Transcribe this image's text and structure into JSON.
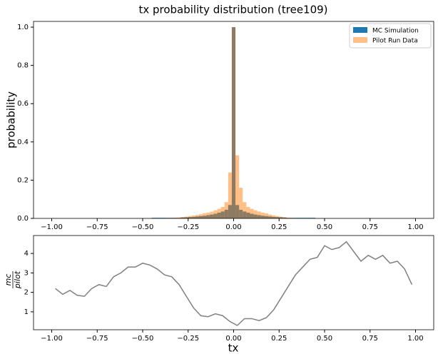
{
  "chart_data": [
    {
      "type": "histogram",
      "title": "tx probability distribution (tree109)",
      "ylabel": "probability",
      "bins": [
        -0.45,
        -0.43,
        -0.41,
        -0.39,
        -0.37,
        -0.35,
        -0.33,
        -0.31,
        -0.29,
        -0.27,
        -0.25,
        -0.23,
        -0.21,
        -0.19,
        -0.17,
        -0.15,
        -0.13,
        -0.11,
        -0.09,
        -0.07,
        -0.05,
        -0.03,
        -0.01,
        0.01,
        0.03,
        0.05,
        0.07,
        0.09,
        0.11,
        0.13,
        0.15,
        0.17,
        0.19,
        0.21,
        0.23,
        0.25,
        0.27,
        0.29,
        0.31,
        0.33,
        0.35,
        0.37,
        0.39,
        0.41,
        0.43,
        0.45
      ],
      "series": [
        {
          "name": "MC Simulation",
          "color": "#1f77b4",
          "alpha": 1,
          "values": [
            0.003,
            0.003,
            0.003,
            0.003,
            0.003,
            0.003,
            0.003,
            0.003,
            0.005,
            0.006,
            0.007,
            0.008,
            0.01,
            0.012,
            0.014,
            0.017,
            0.02,
            0.024,
            0.03,
            0.036,
            0.045,
            0.07,
            1.0,
            0.07,
            0.045,
            0.036,
            0.03,
            0.024,
            0.02,
            0.017,
            0.014,
            0.012,
            0.01,
            0.008,
            0.007,
            0.006,
            0.005,
            0.003,
            0.003,
            0.003,
            0.003,
            0.003,
            0.003,
            0.003,
            0.003
          ]
        },
        {
          "name": "Pilot Run Data",
          "color": "#ff7f0e",
          "alpha": 0.5,
          "values": [
            0,
            0,
            0,
            0,
            0.002,
            0.003,
            0.004,
            0.005,
            0.007,
            0.009,
            0.012,
            0.015,
            0.018,
            0.022,
            0.027,
            0.03,
            0.035,
            0.042,
            0.05,
            0.06,
            0.085,
            0.24,
            1.0,
            0.33,
            0.16,
            0.085,
            0.06,
            0.05,
            0.042,
            0.036,
            0.03,
            0.026,
            0.02,
            0.016,
            0.012,
            0.009,
            0.006,
            0.004,
            0.003,
            0.002,
            0,
            0,
            0,
            0,
            0
          ]
        }
      ],
      "xlim": [
        -1.1,
        1.1
      ],
      "xticks": [
        {
          "value": -1,
          "label": "−1.00"
        },
        {
          "value": -0.75,
          "label": "−0.75"
        },
        {
          "value": -0.5,
          "label": "−0.50"
        },
        {
          "value": -0.25,
          "label": "−0.25"
        },
        {
          "value": 0,
          "label": "0.00"
        },
        {
          "value": 0.25,
          "label": "0.25"
        },
        {
          "value": 0.5,
          "label": "0.50"
        },
        {
          "value": 0.75,
          "label": "0.75"
        },
        {
          "value": 1,
          "label": "1.00"
        }
      ],
      "ylim": [
        0,
        1.03
      ],
      "yticks": [
        {
          "value": 0,
          "label": "0.0"
        },
        0.2,
        0.4,
        0.6,
        0.8,
        {
          "value": 1,
          "label": "1.0"
        }
      ],
      "legend": "upper right"
    },
    {
      "type": "line",
      "xlabel": "tx",
      "ylabel": {
        "numerator": "mc",
        "denominator": "pilot"
      },
      "color": "#808080",
      "x": [
        -0.98,
        -0.94,
        -0.9,
        -0.86,
        -0.82,
        -0.78,
        -0.74,
        -0.7,
        -0.66,
        -0.62,
        -0.58,
        -0.54,
        -0.5,
        -0.46,
        -0.42,
        -0.38,
        -0.34,
        -0.3,
        -0.26,
        -0.22,
        -0.18,
        -0.14,
        -0.1,
        -0.06,
        -0.02,
        0.02,
        0.06,
        0.1,
        0.14,
        0.18,
        0.22,
        0.26,
        0.3,
        0.34,
        0.38,
        0.42,
        0.46,
        0.5,
        0.54,
        0.58,
        0.62,
        0.66,
        0.7,
        0.74,
        0.78,
        0.82,
        0.86,
        0.9,
        0.94,
        0.98
      ],
      "values": [
        2.2,
        1.9,
        2.1,
        1.85,
        1.8,
        2.2,
        2.4,
        2.3,
        2.8,
        3.0,
        3.3,
        3.3,
        3.5,
        3.4,
        3.2,
        2.9,
        2.8,
        2.4,
        1.8,
        1.2,
        0.8,
        0.75,
        0.9,
        0.8,
        0.5,
        0.3,
        0.65,
        0.65,
        0.55,
        0.7,
        1.1,
        1.7,
        2.3,
        2.9,
        3.3,
        3.7,
        3.8,
        4.4,
        4.2,
        4.3,
        4.6,
        4.1,
        3.6,
        3.9,
        3.7,
        3.9,
        3.5,
        3.6,
        3.2,
        2.4
      ],
      "xlim": [
        -1.1,
        1.1
      ],
      "xticks": [
        {
          "value": -1,
          "label": "−1.00"
        },
        {
          "value": -0.75,
          "label": "−0.75"
        },
        {
          "value": -0.5,
          "label": "−0.50"
        },
        {
          "value": -0.25,
          "label": "−0.25"
        },
        {
          "value": 0,
          "label": "0.00"
        },
        {
          "value": 0.25,
          "label": "0.25"
        },
        {
          "value": 0.5,
          "label": "0.50"
        },
        {
          "value": 0.75,
          "label": "0.75"
        },
        {
          "value": 1,
          "label": "1.00"
        }
      ],
      "ylim": [
        0.08,
        4.92
      ],
      "yticks": [
        1,
        2,
        3,
        4
      ]
    }
  ]
}
